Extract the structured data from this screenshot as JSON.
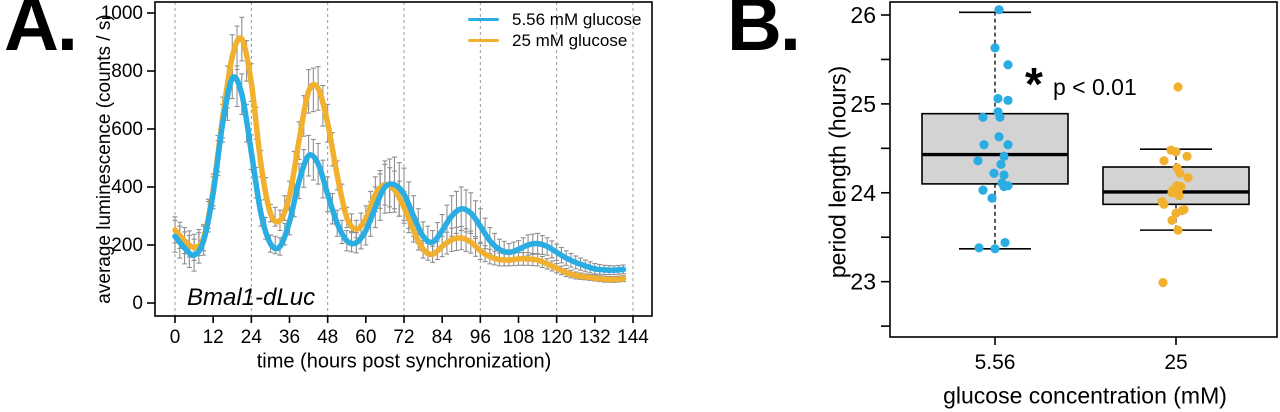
{
  "figure": {
    "panel_a_label": "A.",
    "panel_b_label": "B."
  },
  "colors": {
    "series_low_glucose": "#2aade3",
    "series_high_glucose": "#f2b02f",
    "error_bar": "#8f8f8f",
    "box_fill": "#d3d3d3",
    "axis": "#000000",
    "gridline": "#999999"
  },
  "chart_data": [
    {
      "type": "line",
      "panel": "A",
      "annotation": "Bmal1-dLuc",
      "xlabel": "time (hours post synchronization)",
      "ylabel": "average luminescence (counts / s)",
      "xlim": [
        -6,
        150
      ],
      "ylim": [
        -45,
        1040
      ],
      "x_ticks": [
        0,
        12,
        24,
        36,
        48,
        60,
        72,
        84,
        96,
        108,
        120,
        132,
        144
      ],
      "y_ticks": [
        0,
        200,
        400,
        600,
        800,
        1000
      ],
      "gridlines_x": [
        0,
        24,
        48,
        72,
        96,
        120,
        144
      ],
      "grid": "vertical-dashed",
      "legend_position": "top-right",
      "legend": [
        {
          "label": "5.56 mM glucose",
          "color": "#2aade3"
        },
        {
          "label": "25 mM glucose",
          "color": "#f2b02f"
        }
      ],
      "x": [
        0,
        3,
        6,
        9,
        12,
        15,
        18,
        21,
        24,
        27,
        30,
        33,
        36,
        39,
        42,
        45,
        48,
        51,
        54,
        57,
        60,
        63,
        66,
        69,
        72,
        75,
        78,
        81,
        84,
        87,
        90,
        93,
        96,
        99,
        102,
        105,
        108,
        111,
        114,
        117,
        120,
        123,
        126,
        129,
        132,
        135,
        138,
        141
      ],
      "series": [
        {
          "name": "5.56 mM glucose",
          "color": "#2aade3",
          "values": [
            230,
            190,
            165,
            215,
            380,
            620,
            775,
            720,
            520,
            310,
            205,
            195,
            280,
            420,
            508,
            480,
            375,
            275,
            215,
            208,
            250,
            330,
            400,
            408,
            375,
            300,
            230,
            210,
            250,
            300,
            325,
            310,
            265,
            215,
            185,
            175,
            185,
            200,
            205,
            195,
            175,
            155,
            140,
            128,
            118,
            114,
            113,
            116
          ],
          "errors": [
            55,
            55,
            55,
            50,
            55,
            65,
            70,
            70,
            60,
            45,
            30,
            30,
            45,
            60,
            70,
            70,
            60,
            45,
            35,
            35,
            50,
            70,
            90,
            95,
            90,
            70,
            50,
            40,
            55,
            70,
            75,
            70,
            60,
            45,
            35,
            30,
            30,
            35,
            35,
            30,
            28,
            25,
            22,
            20,
            18,
            16,
            15,
            15
          ]
        },
        {
          "name": "25 mM glucose",
          "color": "#f2b02f",
          "values": [
            252,
            215,
            192,
            225,
            390,
            640,
            850,
            910,
            760,
            480,
            310,
            285,
            370,
            560,
            730,
            740,
            620,
            440,
            295,
            255,
            290,
            375,
            408,
            390,
            330,
            250,
            185,
            168,
            195,
            218,
            224,
            210,
            180,
            160,
            150,
            148,
            152,
            152,
            148,
            135,
            120,
            105,
            95,
            90,
            86,
            82,
            81,
            84
          ],
          "errors": [
            45,
            45,
            45,
            45,
            55,
            70,
            75,
            75,
            65,
            45,
            30,
            35,
            50,
            65,
            75,
            75,
            65,
            50,
            35,
            30,
            45,
            60,
            70,
            65,
            55,
            40,
            30,
            28,
            35,
            40,
            40,
            38,
            30,
            25,
            22,
            20,
            22,
            22,
            20,
            18,
            16,
            14,
            12,
            10,
            10,
            10,
            10,
            10
          ]
        }
      ]
    },
    {
      "type": "boxplot-scatter",
      "panel": "B",
      "xlabel": "glucose concentration (mM)",
      "ylabel": "period length (hours)",
      "ylim": [
        22.3,
        26.15
      ],
      "y_ticks_major": [
        23,
        24,
        25,
        26
      ],
      "y_ticks_minor": [
        22.5,
        23.5,
        24.5,
        25.5
      ],
      "categories": [
        "5.56",
        "25"
      ],
      "significance": {
        "star": "*",
        "text": "p < 0.01"
      },
      "groups": [
        {
          "label": "5.56",
          "color": "#2aade3",
          "box": {
            "q1": 24.1,
            "median": 24.43,
            "q3": 24.89,
            "whisker_low": 23.37,
            "whisker_high": 26.03
          },
          "points": [
            [
              26.06,
              4
            ],
            [
              25.63,
              0
            ],
            [
              25.44,
              13
            ],
            [
              25.06,
              3
            ],
            [
              25.04,
              13
            ],
            [
              24.91,
              3
            ],
            [
              24.85,
              5
            ],
            [
              24.85,
              -12
            ],
            [
              24.63,
              4
            ],
            [
              24.54,
              -11
            ],
            [
              24.54,
              13
            ],
            [
              24.41,
              9
            ],
            [
              24.36,
              -17
            ],
            [
              24.32,
              6
            ],
            [
              24.22,
              -1
            ],
            [
              24.2,
              9
            ],
            [
              24.11,
              7
            ],
            [
              24.08,
              13
            ],
            [
              24.07,
              9
            ],
            [
              24.03,
              -12
            ],
            [
              23.94,
              -3
            ],
            [
              23.44,
              10
            ],
            [
              23.38,
              -16
            ],
            [
              23.37,
              0
            ]
          ]
        },
        {
          "label": "25",
          "color": "#f2b02f",
          "box": {
            "q1": 23.87,
            "median": 24.01,
            "q3": 24.29,
            "whisker_low": 23.58,
            "whisker_high": 24.49
          },
          "points": [
            [
              25.19,
              2
            ],
            [
              24.48,
              -5
            ],
            [
              24.46,
              0
            ],
            [
              24.41,
              11
            ],
            [
              24.36,
              -12
            ],
            [
              24.28,
              1
            ],
            [
              24.22,
              4
            ],
            [
              24.17,
              12
            ],
            [
              24.08,
              1
            ],
            [
              24.07,
              5
            ],
            [
              24.03,
              -3
            ],
            [
              24.01,
              2
            ],
            [
              24.0,
              -4
            ],
            [
              23.97,
              3
            ],
            [
              23.9,
              -14
            ],
            [
              23.87,
              -12
            ],
            [
              23.81,
              8
            ],
            [
              23.8,
              6
            ],
            [
              23.77,
              0
            ],
            [
              23.69,
              -4
            ],
            [
              23.58,
              2
            ],
            [
              22.99,
              -13
            ]
          ]
        }
      ]
    }
  ]
}
